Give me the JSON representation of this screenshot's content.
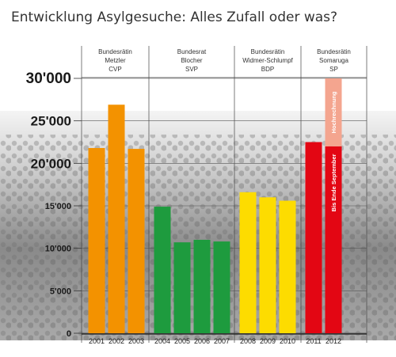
{
  "title": "Entwicklung Asylgesuche: Alles Zufall oder was?",
  "chart_data": {
    "type": "bar",
    "categories": [
      "2001",
      "2002",
      "2003",
      "2004",
      "2005",
      "2006",
      "2007",
      "2008",
      "2009",
      "2010",
      "2011",
      "2012"
    ],
    "values": [
      21800,
      26900,
      21700,
      14900,
      10700,
      11000,
      10800,
      16600,
      16000,
      15600,
      22500,
      22000
    ],
    "series": [
      {
        "values": [
          21800,
          26900,
          21700,
          14900,
          10700,
          11000,
          10800,
          16600,
          16000,
          15600,
          22500,
          22000
        ]
      },
      {
        "name": "Hochrechnung",
        "values": [
          null,
          null,
          null,
          null,
          null,
          null,
          null,
          null,
          null,
          null,
          null,
          30000
        ]
      }
    ],
    "bar_colors": [
      "#f39200",
      "#f39200",
      "#f39200",
      "#1e9b3e",
      "#1e9b3e",
      "#1e9b3e",
      "#1e9b3e",
      "#fddc00",
      "#fddc00",
      "#fddc00",
      "#e30613",
      "#e30613"
    ],
    "projection_color": "#f4a58f",
    "ylim": [
      0,
      30000
    ],
    "yticks": [
      0,
      5000,
      10000,
      15000,
      20000,
      25000,
      30000
    ],
    "ytick_labels": [
      "0",
      "5'000",
      "10'000",
      "15'000",
      "20'000",
      "25'000",
      "30'000"
    ],
    "periods": [
      {
        "lines": [
          "Bundesrätin",
          "Metzler",
          "CVP"
        ],
        "from": 0,
        "to": 2
      },
      {
        "lines": [
          "Bundesrat",
          "Blocher",
          "SVP"
        ],
        "from": 3,
        "to": 6
      },
      {
        "lines": [
          "Bundesrätin",
          "Widmer-Schlumpf",
          "BDP"
        ],
        "from": 7,
        "to": 9
      },
      {
        "lines": [
          "Bundesrätin",
          "Somaruga",
          "SP"
        ],
        "from": 10,
        "to": 11
      }
    ],
    "annotations": [
      "Hochrechnung",
      "Bis Ende September"
    ],
    "grid": true
  }
}
